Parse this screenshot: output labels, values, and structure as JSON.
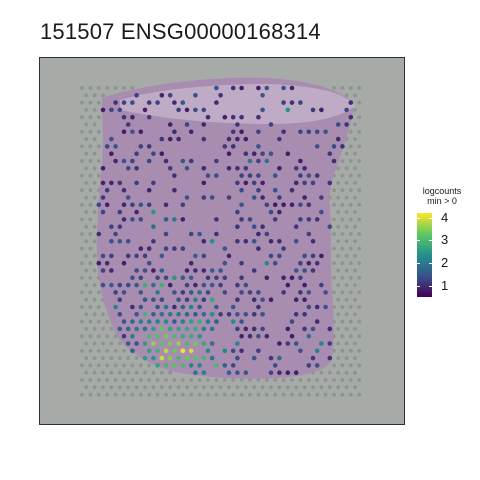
{
  "title": "151507 ENSG00000168314",
  "legend": {
    "title_line1": "logcounts",
    "title_line2": "min > 0",
    "ticks": [
      "4",
      "3",
      "2",
      "1"
    ],
    "colors": [
      "#fde725",
      "#5dc863",
      "#21908c",
      "#3b528b",
      "#440154"
    ]
  },
  "chart_data": {
    "type": "scatter",
    "title": "151507 ENSG00000168314",
    "xlabel": "",
    "ylabel": "",
    "color_scale": "viridis",
    "color_range": [
      0.5,
      4.3
    ],
    "legend_placement": "right",
    "legend_ticks": [
      1,
      2,
      3,
      4
    ],
    "background_colors": {
      "panel": "#a6aba7",
      "tissue": "#a98bb0",
      "empty_spot": "#8e9492"
    }
  }
}
